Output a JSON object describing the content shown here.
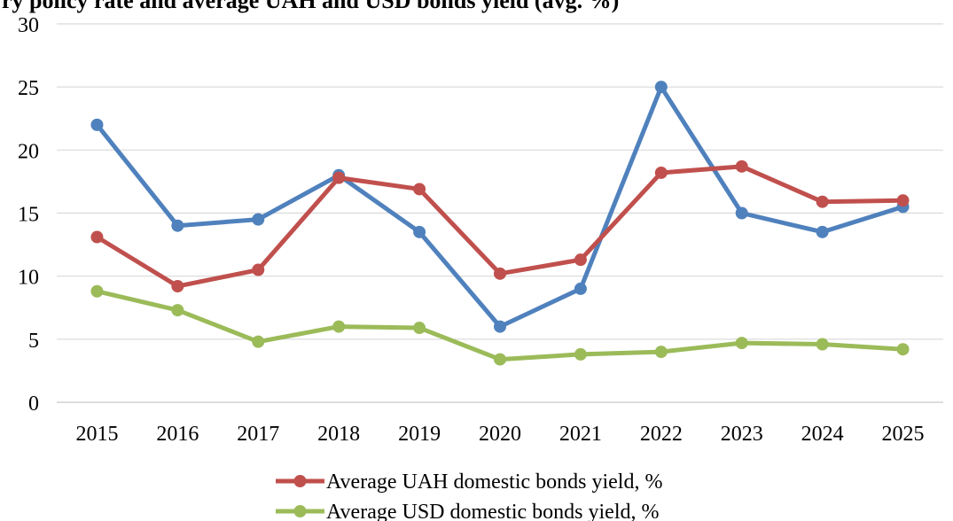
{
  "title": "ry policy rate and average UAH and USD bonds yield (avg. %)",
  "chart_data": {
    "type": "line",
    "categories": [
      "2015",
      "2016",
      "2017",
      "2018",
      "2019",
      "2020",
      "2021",
      "2022",
      "2023",
      "2024",
      "2025"
    ],
    "ylim": [
      0,
      30
    ],
    "yticks": [
      0,
      5,
      10,
      15,
      20,
      25,
      30
    ],
    "grid": true,
    "legend_position": "bottom",
    "series": [
      {
        "key": "policy",
        "color": "#4f81bd",
        "values": [
          22,
          14,
          14.5,
          18,
          13.5,
          6,
          9,
          25,
          15,
          13.5,
          15.5
        ]
      },
      {
        "key": "uah",
        "name": "Average UAH domestic bonds yield, %",
        "color": "#c0504d",
        "values": [
          13.1,
          9.2,
          10.5,
          17.8,
          16.9,
          10.2,
          11.3,
          18.2,
          18.7,
          15.9,
          16.0
        ]
      },
      {
        "key": "usd",
        "name": "Average USD domestic bonds yield, %",
        "color": "#9bbb59",
        "values": [
          8.8,
          7.3,
          4.8,
          6.0,
          5.9,
          3.4,
          3.8,
          4.0,
          4.7,
          4.6,
          4.2
        ]
      }
    ]
  }
}
